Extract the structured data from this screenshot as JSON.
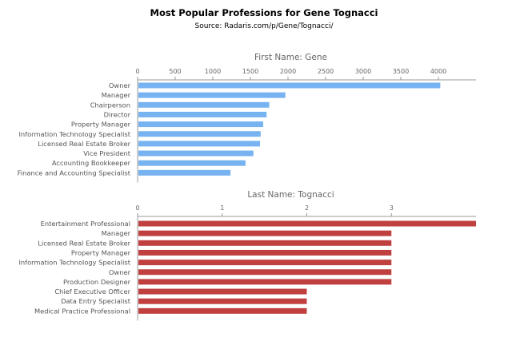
{
  "title": "Most Popular Professions for Gene Tognacci",
  "subtitle": "Source: Radaris.com/p/Gene/Tognacci/",
  "chart_data": [
    {
      "type": "bar",
      "orientation": "horizontal",
      "title": "First Name: Gene",
      "color": "#77b3f0",
      "xlim": [
        0,
        4500
      ],
      "ticks": [
        0,
        500,
        1000,
        1500,
        2000,
        2500,
        3000,
        3500,
        4000
      ],
      "categories": [
        "Owner",
        "Manager",
        "Chairperson",
        "Director",
        "Property Manager",
        "Information Technology Specialist",
        "Licensed Real Estate Broker",
        "Vice President",
        "Accounting Bookkeeper",
        "Finance and Accounting Specialist"
      ],
      "values": [
        4025,
        1965,
        1750,
        1715,
        1670,
        1637,
        1628,
        1540,
        1435,
        1235
      ]
    },
    {
      "type": "bar",
      "orientation": "horizontal",
      "title": "Last Name: Tognacci",
      "color": "#c04040",
      "xlim": [
        0,
        4
      ],
      "ticks": [
        0,
        1,
        2,
        3
      ],
      "categories": [
        "Entertainment Professional",
        "Manager",
        "Licensed Real Estate Broker",
        "Property Manager",
        "Information Technology Specialist",
        "Owner",
        "Production Designer",
        "Chief Executive Officer",
        "Data Entry Specialist",
        "Medical Practice Professional"
      ],
      "values": [
        4,
        3,
        3,
        3,
        3,
        3,
        3,
        2,
        2,
        2
      ]
    }
  ]
}
